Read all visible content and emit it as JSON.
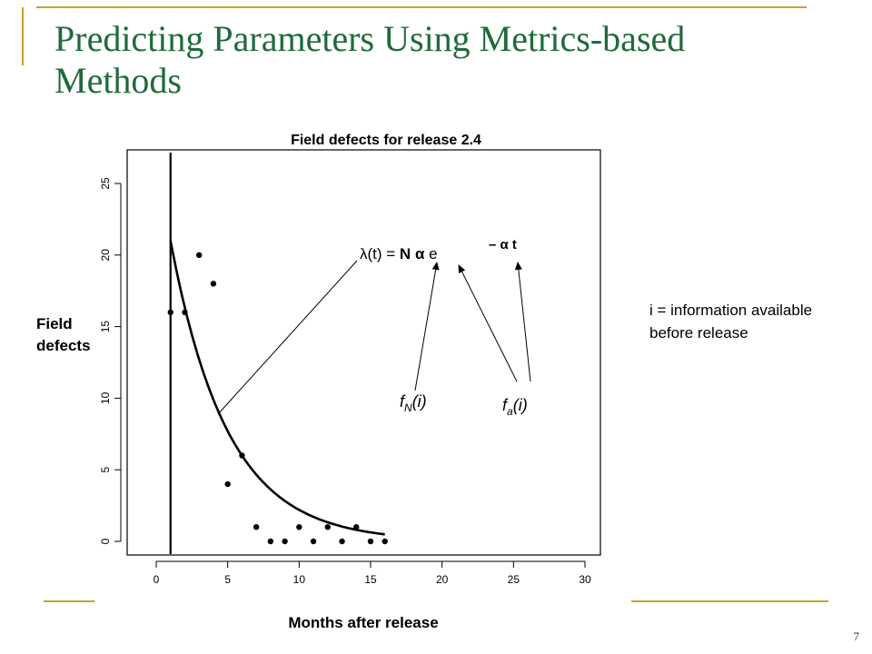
{
  "slide": {
    "title": "Predicting Parameters Using Metrics-based Methods",
    "page_number": "7",
    "side_note": "i = information available before release"
  },
  "colors": {
    "title": "#1e6b3a",
    "accent_rule": "#c9a227",
    "ink": "#000000"
  },
  "chart_data": {
    "type": "scatter",
    "title": "Field defects for release 2.4",
    "xlabel": "Months after release",
    "ylabel": "Field defects",
    "xlim": [
      0,
      30
    ],
    "ylim": [
      0,
      25
    ],
    "x_ticks": [
      0,
      5,
      10,
      15,
      20,
      25,
      30
    ],
    "y_ticks": [
      0,
      5,
      10,
      15,
      20,
      25
    ],
    "grid": false,
    "points": {
      "x": [
        1,
        2,
        3,
        4,
        5,
        6,
        7,
        8,
        9,
        10,
        11,
        12,
        13,
        14,
        15,
        16
      ],
      "y": [
        16,
        16,
        20,
        18,
        4,
        6,
        1,
        0,
        0,
        1,
        0,
        1,
        0,
        1,
        0,
        0
      ]
    },
    "fitted_curve": {
      "formula": "λ(t) = N α e^(−α t)",
      "x_start": 1,
      "x_end": 16,
      "y_at_start": 21,
      "alpha": 0.2507
    },
    "vertical_line_x": 1,
    "annotations": {
      "equation_prefix": "λ(t) = ",
      "equation_N": "N",
      "equation_alpha": "α",
      "equation_e": "e",
      "equation_exponent": "– α t",
      "fN_label": "f",
      "fN_sub": "N",
      "fN_arg": "(i)",
      "fa_label": "f",
      "fa_sub": "a",
      "fa_arg": "(i)"
    }
  }
}
